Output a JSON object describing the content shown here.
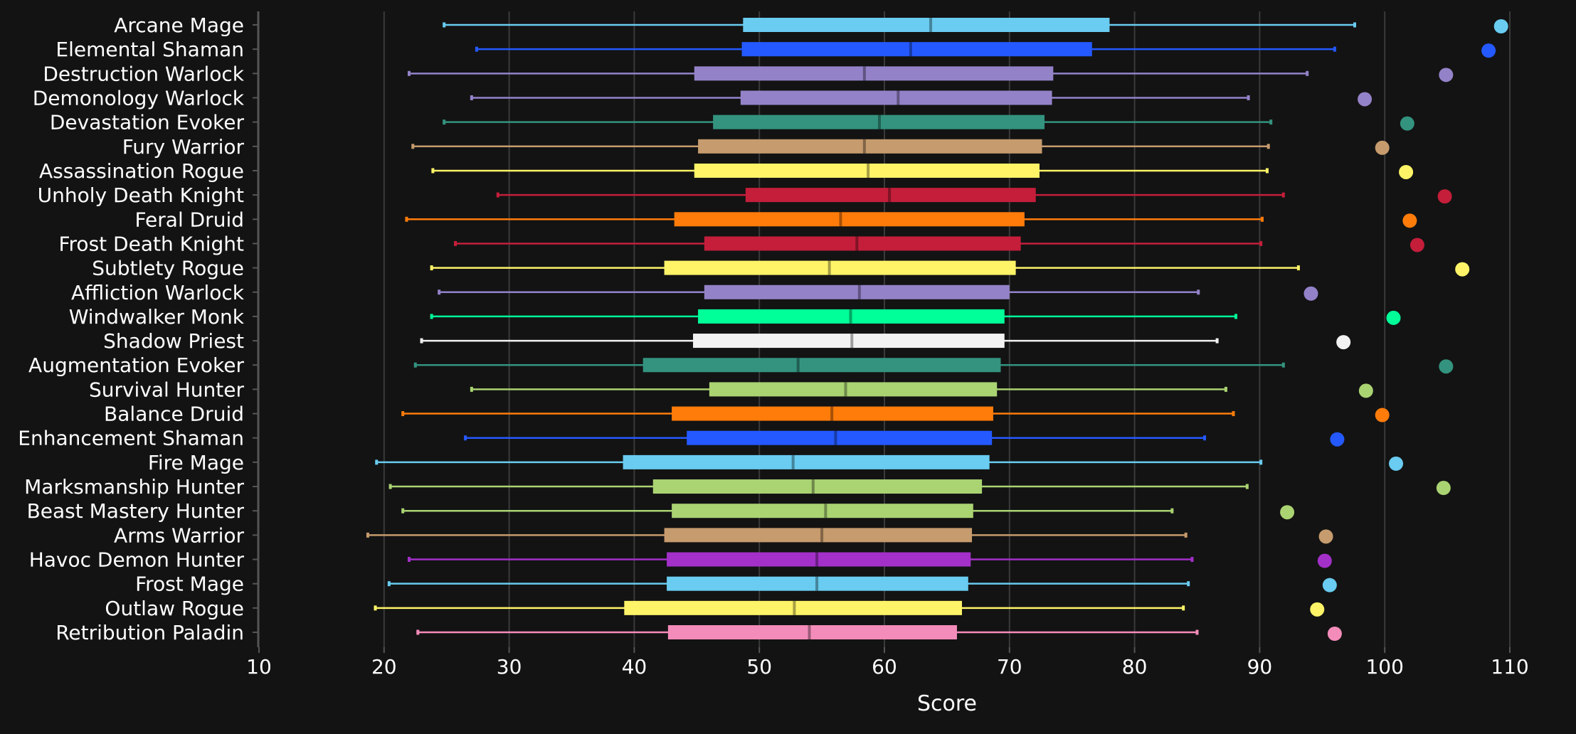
{
  "chart_data": {
    "type": "box",
    "orientation": "horizontal",
    "xlabel": "Score",
    "xlim": [
      10,
      110
    ],
    "xticks": [
      10,
      20,
      30,
      40,
      50,
      60,
      70,
      80,
      90,
      100,
      110
    ],
    "grid": true,
    "rows": [
      {
        "name": "Arcane Mage",
        "color": "#69CCF0",
        "whisker_low": 24.8,
        "q1": 48.7,
        "median": 63.7,
        "q3": 78.0,
        "whisker_high": 97.6,
        "max": 109.3
      },
      {
        "name": "Elemental Shaman",
        "color": "#2459FF",
        "whisker_low": 27.4,
        "q1": 48.6,
        "median": 62.1,
        "q3": 76.6,
        "whisker_high": 96.0,
        "max": 108.3
      },
      {
        "name": "Destruction Warlock",
        "color": "#9482C9",
        "whisker_low": 22.0,
        "q1": 44.8,
        "median": 58.4,
        "q3": 73.5,
        "whisker_high": 93.8,
        "max": 104.9
      },
      {
        "name": "Demonology Warlock",
        "color": "#9482C9",
        "whisker_low": 27.0,
        "q1": 48.5,
        "median": 61.1,
        "q3": 73.4,
        "whisker_high": 89.1,
        "max": 98.4
      },
      {
        "name": "Devastation Evoker",
        "color": "#33937F",
        "whisker_low": 24.8,
        "q1": 46.3,
        "median": 59.6,
        "q3": 72.8,
        "whisker_high": 90.9,
        "max": 101.8
      },
      {
        "name": "Fury Warrior",
        "color": "#C69B6D",
        "whisker_low": 22.3,
        "q1": 45.1,
        "median": 58.4,
        "q3": 72.6,
        "whisker_high": 90.7,
        "max": 99.8
      },
      {
        "name": "Assassination Rogue",
        "color": "#FFF468",
        "whisker_low": 23.9,
        "q1": 44.8,
        "median": 58.7,
        "q3": 72.4,
        "whisker_high": 90.6,
        "max": 101.7
      },
      {
        "name": "Unholy Death Knight",
        "color": "#C41E3A",
        "whisker_low": 29.1,
        "q1": 48.9,
        "median": 60.4,
        "q3": 72.1,
        "whisker_high": 91.9,
        "max": 104.8
      },
      {
        "name": "Feral Druid",
        "color": "#FF7C0A",
        "whisker_low": 21.8,
        "q1": 43.2,
        "median": 56.5,
        "q3": 71.2,
        "whisker_high": 90.2,
        "max": 102.0
      },
      {
        "name": "Frost Death Knight",
        "color": "#C41E3A",
        "whisker_low": 25.7,
        "q1": 45.6,
        "median": 57.8,
        "q3": 70.9,
        "whisker_high": 90.1,
        "max": 102.6
      },
      {
        "name": "Subtlety Rogue",
        "color": "#FFF468",
        "whisker_low": 23.8,
        "q1": 42.4,
        "median": 55.6,
        "q3": 70.5,
        "whisker_high": 93.1,
        "max": 106.2
      },
      {
        "name": "Affliction Warlock",
        "color": "#9482C9",
        "whisker_low": 24.4,
        "q1": 45.6,
        "median": 58.0,
        "q3": 70.0,
        "whisker_high": 85.1,
        "max": 94.1
      },
      {
        "name": "Windwalker Monk",
        "color": "#00FF98",
        "whisker_low": 23.8,
        "q1": 45.1,
        "median": 57.3,
        "q3": 69.6,
        "whisker_high": 88.1,
        "max": 100.7
      },
      {
        "name": "Shadow Priest",
        "color": "#F2F2F2",
        "whisker_low": 23.0,
        "q1": 44.7,
        "median": 57.4,
        "q3": 69.6,
        "whisker_high": 86.6,
        "max": 96.7
      },
      {
        "name": "Augmentation Evoker",
        "color": "#33937F",
        "whisker_low": 22.5,
        "q1": 40.7,
        "median": 53.1,
        "q3": 69.3,
        "whisker_high": 91.9,
        "max": 104.9
      },
      {
        "name": "Survival Hunter",
        "color": "#AAD372",
        "whisker_low": 27.0,
        "q1": 46.0,
        "median": 56.9,
        "q3": 69.0,
        "whisker_high": 87.3,
        "max": 98.5
      },
      {
        "name": "Balance Druid",
        "color": "#FF7C0A",
        "whisker_low": 21.5,
        "q1": 43.0,
        "median": 55.8,
        "q3": 68.7,
        "whisker_high": 87.9,
        "max": 99.8
      },
      {
        "name": "Enhancement Shaman",
        "color": "#2459FF",
        "whisker_low": 26.5,
        "q1": 44.2,
        "median": 56.1,
        "q3": 68.6,
        "whisker_high": 85.6,
        "max": 96.2
      },
      {
        "name": "Fire Mage",
        "color": "#69CCF0",
        "whisker_low": 19.4,
        "q1": 39.1,
        "median": 52.7,
        "q3": 68.4,
        "whisker_high": 90.1,
        "max": 100.9
      },
      {
        "name": "Marksmanship Hunter",
        "color": "#AAD372",
        "whisker_low": 20.5,
        "q1": 41.5,
        "median": 54.3,
        "q3": 67.8,
        "whisker_high": 89.0,
        "max": 104.7
      },
      {
        "name": "Beast Mastery Hunter",
        "color": "#AAD372",
        "whisker_low": 21.5,
        "q1": 43.0,
        "median": 55.3,
        "q3": 67.1,
        "whisker_high": 83.0,
        "max": 92.2
      },
      {
        "name": "Arms Warrior",
        "color": "#C69B6D",
        "whisker_low": 18.7,
        "q1": 42.4,
        "median": 55.0,
        "q3": 67.0,
        "whisker_high": 84.1,
        "max": 95.3
      },
      {
        "name": "Havoc Demon Hunter",
        "color": "#A330C9",
        "whisker_low": 22.0,
        "q1": 42.6,
        "median": 54.6,
        "q3": 66.9,
        "whisker_high": 84.6,
        "max": 95.2
      },
      {
        "name": "Frost Mage",
        "color": "#69CCF0",
        "whisker_low": 20.4,
        "q1": 42.6,
        "median": 54.6,
        "q3": 66.7,
        "whisker_high": 84.3,
        "max": 95.6
      },
      {
        "name": "Outlaw Rogue",
        "color": "#FFF468",
        "whisker_low": 19.3,
        "q1": 39.2,
        "median": 52.8,
        "q3": 66.2,
        "whisker_high": 83.9,
        "max": 94.6
      },
      {
        "name": "Retribution Paladin",
        "color": "#F48CBA",
        "whisker_low": 22.7,
        "q1": 42.7,
        "median": 54.0,
        "q3": 65.8,
        "whisker_high": 85.0,
        "max": 96.0
      }
    ]
  }
}
